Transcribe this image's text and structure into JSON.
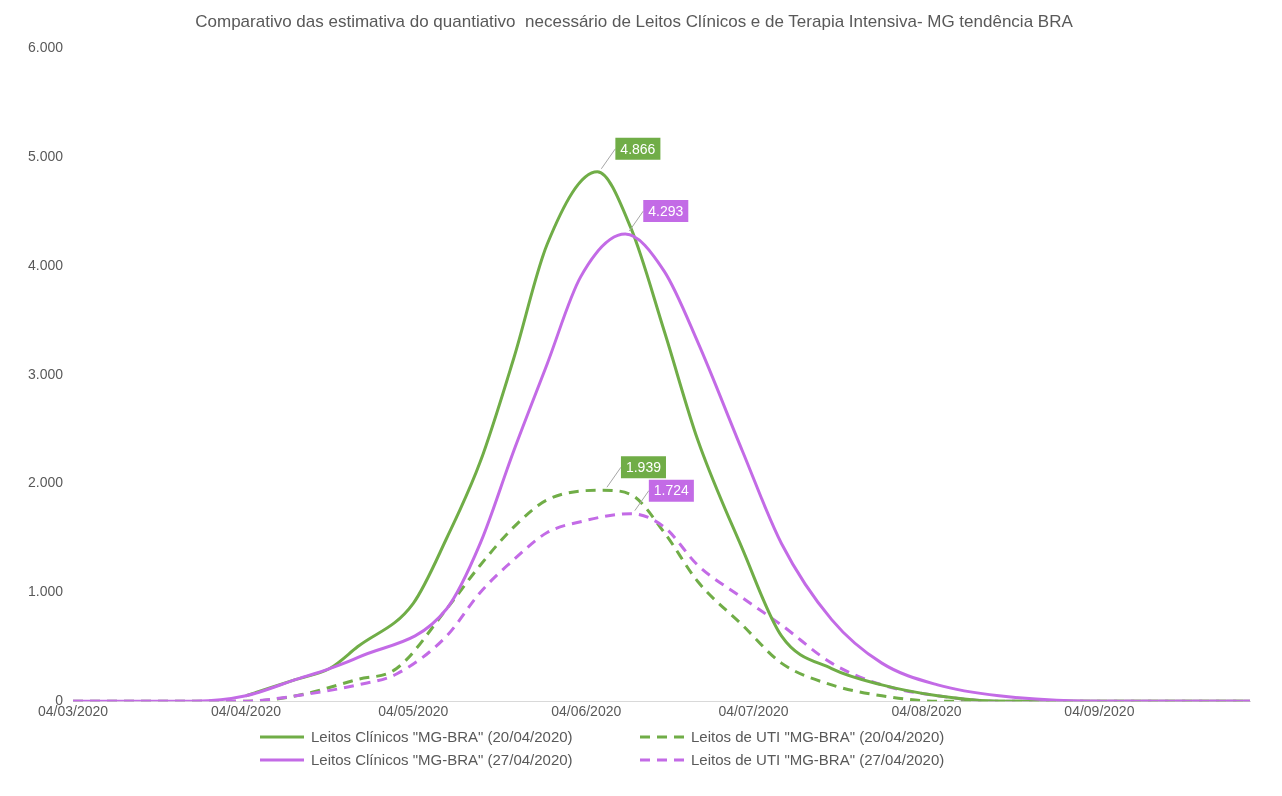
{
  "chart_data": {
    "type": "line",
    "title": "Comparativo das estimativa do quantiativo  necessário de Leitos Clínicos e de Terapia Intensiva- MG tendência BRA",
    "xlim": [
      "2020-03-04",
      "2020-10-01"
    ],
    "xticks": [
      {
        "value": "2020-03-04",
        "label": "04/03/2020"
      },
      {
        "value": "2020-04-04",
        "label": "04/04/2020"
      },
      {
        "value": "2020-05-04",
        "label": "04/05/2020"
      },
      {
        "value": "2020-06-04",
        "label": "04/06/2020"
      },
      {
        "value": "2020-07-04",
        "label": "04/07/2020"
      },
      {
        "value": "2020-08-04",
        "label": "04/08/2020"
      },
      {
        "value": "2020-09-04",
        "label": "04/09/2020"
      }
    ],
    "ylim": [
      0,
      6000
    ],
    "yticks": [
      {
        "value": 0,
        "label": "0"
      },
      {
        "value": 1000,
        "label": "1.000"
      },
      {
        "value": 2000,
        "label": "2.000"
      },
      {
        "value": 3000,
        "label": "3.000"
      },
      {
        "value": 4000,
        "label": "4.000"
      },
      {
        "value": 5000,
        "label": "5.000"
      },
      {
        "value": 6000,
        "label": "6.000"
      }
    ],
    "grid": false,
    "legend": "bottom",
    "marker": "none",
    "series": [
      {
        "name": "Leitos Clínicos \"MG-BRA\" (20/04/2020)",
        "color": "#70ad47",
        "line_style": "solid",
        "x": [
          "2020-04-04",
          "2020-04-13",
          "2020-04-19",
          "2020-04-24",
          "2020-05-04",
          "2020-05-10",
          "2020-05-16",
          "2020-05-22",
          "2020-05-28",
          "2020-06-06",
          "2020-06-12",
          "2020-06-18",
          "2020-06-24",
          "2020-07-02",
          "2020-07-09",
          "2020-07-18",
          "2020-07-27",
          "2020-08-06",
          "2020-08-17",
          "2020-09-04",
          "2020-10-01"
        ],
        "values": [
          50,
          200,
          300,
          500,
          900,
          1500,
          2200,
          3150,
          4200,
          4866,
          4350,
          3400,
          2400,
          1400,
          600,
          300,
          150,
          50,
          0,
          0,
          0
        ],
        "value_labels": [
          null,
          null,
          null,
          null,
          null,
          null,
          null,
          null,
          null,
          "4.866",
          null,
          null,
          null,
          null,
          null,
          null,
          null,
          null,
          null,
          null,
          null
        ]
      },
      {
        "name": "Leitos de UTI \"MG-BRA\" (20/04/2020)",
        "color": "#70ad47",
        "line_style": "dashed",
        "x": [
          "2020-03-04",
          "2020-03-26",
          "2020-04-04",
          "2020-04-13",
          "2020-04-24",
          "2020-05-01",
          "2020-05-10",
          "2020-05-16",
          "2020-05-22",
          "2020-05-28",
          "2020-06-07",
          "2020-06-12",
          "2020-06-18",
          "2020-06-24",
          "2020-07-02",
          "2020-07-09",
          "2020-07-18",
          "2020-07-27",
          "2020-08-06",
          "2020-08-17",
          "2020-10-01"
        ],
        "values": [
          0,
          0,
          0,
          50,
          200,
          300,
          850,
          1250,
          1600,
          1850,
          1939,
          1900,
          1550,
          1100,
          700,
          350,
          150,
          50,
          0,
          0,
          0
        ],
        "value_labels": [
          null,
          null,
          null,
          null,
          null,
          null,
          null,
          null,
          null,
          null,
          "1.939",
          null,
          null,
          null,
          null,
          null,
          null,
          null,
          null,
          null,
          null
        ]
      },
      {
        "name": "Leitos Clínicos \"MG-BRA\" (27/04/2020)",
        "color": "#c36be6",
        "line_style": "solid",
        "x": [
          "2020-03-04",
          "2020-03-26",
          "2020-04-04",
          "2020-04-13",
          "2020-04-19",
          "2020-04-24",
          "2020-05-10",
          "2020-05-16",
          "2020-05-22",
          "2020-05-28",
          "2020-06-03",
          "2020-06-11",
          "2020-06-18",
          "2020-06-24",
          "2020-07-02",
          "2020-07-09",
          "2020-07-18",
          "2020-07-27",
          "2020-08-06",
          "2020-08-17",
          "2020-09-04",
          "2020-10-01"
        ],
        "values": [
          0,
          0,
          50,
          200,
          300,
          400,
          850,
          1450,
          2300,
          3100,
          3900,
          4293,
          3950,
          3300,
          2300,
          1450,
          750,
          350,
          150,
          50,
          0,
          0
        ],
        "value_labels": [
          null,
          null,
          null,
          null,
          null,
          null,
          null,
          null,
          null,
          null,
          null,
          "4.293",
          null,
          null,
          null,
          null,
          null,
          null,
          null,
          null,
          null,
          null
        ]
      },
      {
        "name": "Leitos de UTI \"MG-BRA\" (27/04/2020)",
        "color": "#c36be6",
        "line_style": "dashed",
        "x": [
          "2020-03-04",
          "2020-03-26",
          "2020-04-04",
          "2020-04-13",
          "2020-04-24",
          "2020-05-01",
          "2020-05-10",
          "2020-05-16",
          "2020-05-22",
          "2020-05-28",
          "2020-06-03",
          "2020-06-12",
          "2020-06-18",
          "2020-06-24",
          "2020-07-02",
          "2020-07-09",
          "2020-07-18",
          "2020-07-27",
          "2020-08-06",
          "2020-08-17",
          "2020-09-04",
          "2020-10-01"
        ],
        "values": [
          0,
          0,
          0,
          50,
          150,
          250,
          600,
          1000,
          1300,
          1550,
          1650,
          1724,
          1600,
          1250,
          950,
          700,
          350,
          150,
          50,
          0,
          0,
          0
        ],
        "value_labels": [
          null,
          null,
          null,
          null,
          null,
          null,
          null,
          null,
          null,
          null,
          null,
          "1.724",
          null,
          null,
          null,
          null,
          null,
          null,
          null,
          null,
          null,
          null
        ]
      }
    ]
  }
}
